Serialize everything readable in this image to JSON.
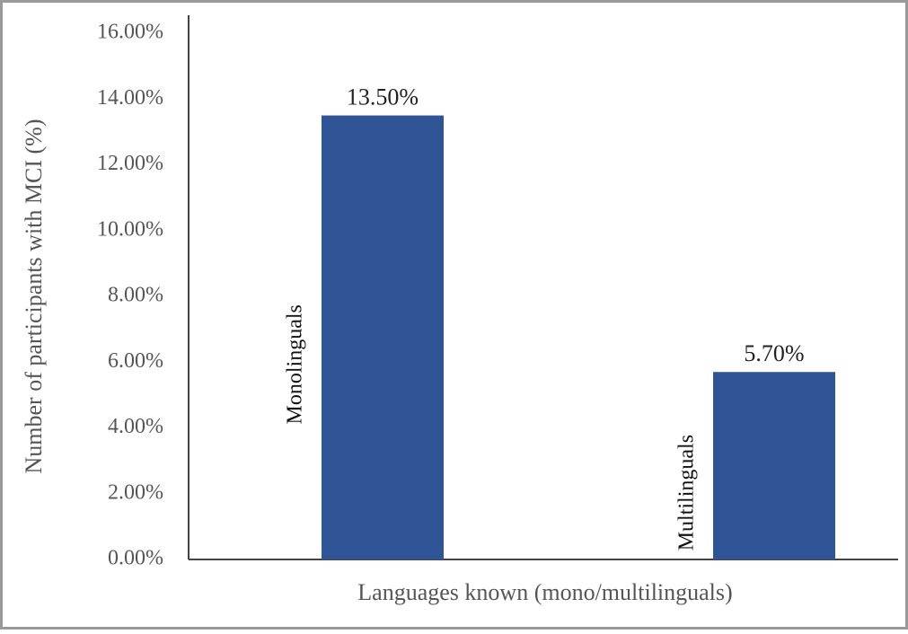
{
  "chart_data": {
    "type": "bar",
    "y_label": "Number of participants with MCI (%)",
    "x_label": "Languages known (mono/multilinguals)",
    "categories": [
      "Monolinguals",
      "Multilinguals"
    ],
    "values": [
      13.5,
      5.7
    ],
    "value_labels": [
      "13.50%",
      "5.70%"
    ],
    "color": "#2f5597",
    "ylim": [
      0,
      16
    ],
    "yticks": [
      {
        "value": 0,
        "label": "0.00%"
      },
      {
        "value": 2,
        "label": "2.00%"
      },
      {
        "value": 4,
        "label": "4.00%"
      },
      {
        "value": 6,
        "label": "6.00%"
      },
      {
        "value": 8,
        "label": "8.00%"
      },
      {
        "value": 10,
        "label": "10.00%"
      },
      {
        "value": 12,
        "label": "12.00%"
      },
      {
        "value": 14,
        "label": "14.00%"
      },
      {
        "value": 16,
        "label": "16.00%"
      }
    ],
    "grid": false
  }
}
